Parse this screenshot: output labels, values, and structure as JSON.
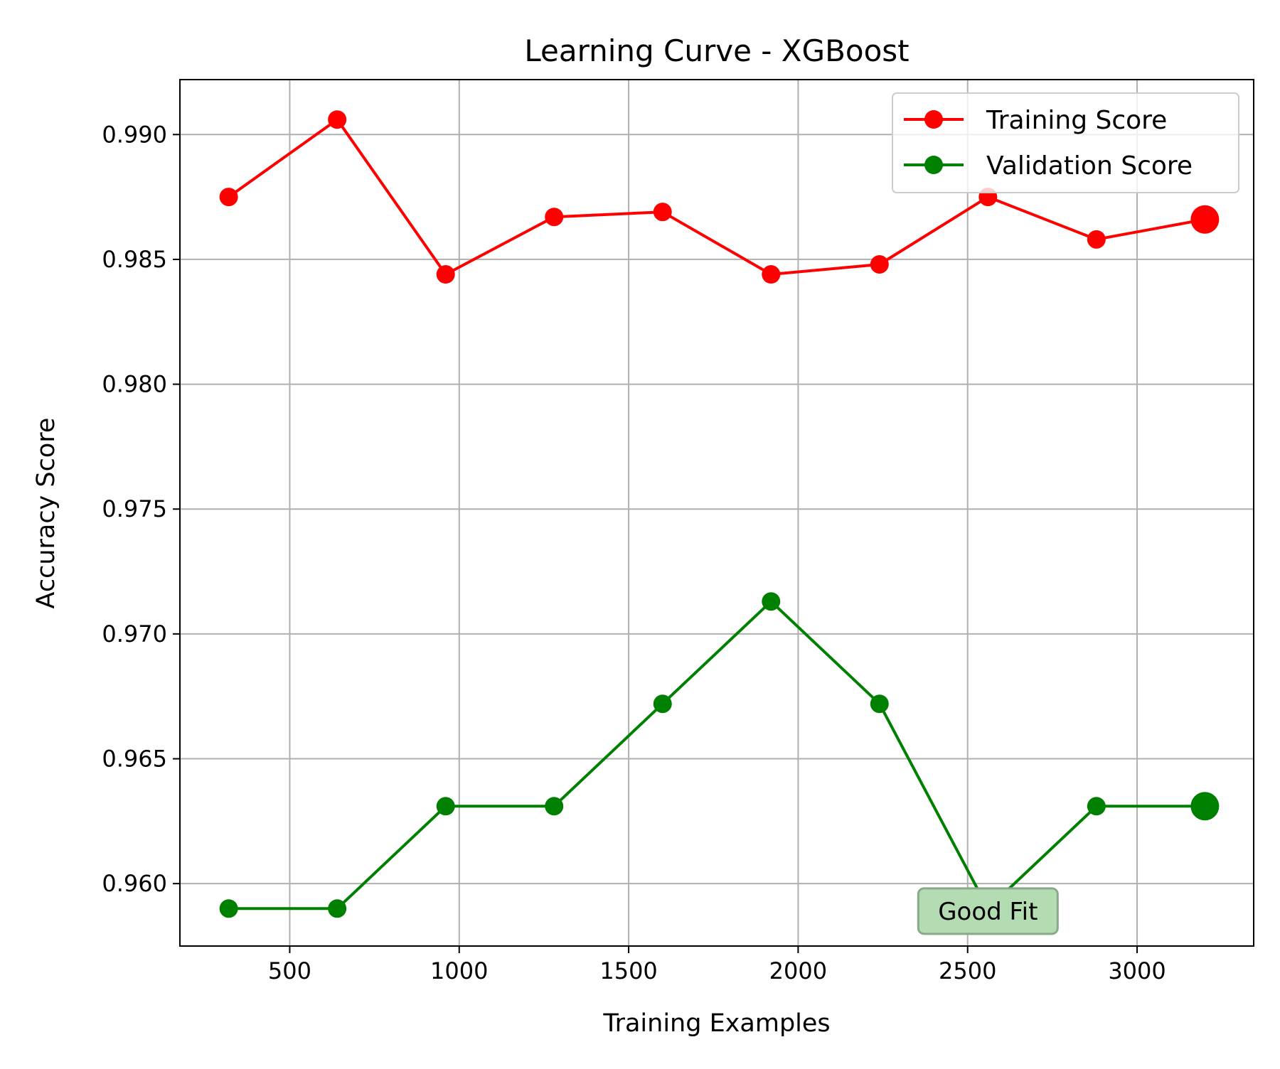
{
  "chart_data": {
    "type": "line",
    "title": "Learning Curve - XGBoost",
    "xlabel": "Training Examples",
    "ylabel": "Accuracy Score",
    "x": [
      320,
      640,
      960,
      1280,
      1600,
      1920,
      2240,
      2560,
      2880,
      3200
    ],
    "xlim": [
      176,
      3344
    ],
    "ylim": [
      0.9575,
      0.9922
    ],
    "xticks": [
      500,
      1000,
      1500,
      2000,
      2500,
      3000
    ],
    "xtick_labels": [
      "500",
      "1000",
      "1500",
      "2000",
      "2500",
      "3000"
    ],
    "yticks": [
      0.96,
      0.965,
      0.97,
      0.975,
      0.98,
      0.985,
      0.99
    ],
    "ytick_labels": [
      "0.960",
      "0.965",
      "0.970",
      "0.975",
      "0.980",
      "0.985",
      "0.990"
    ],
    "grid": true,
    "legend_position": "top-right",
    "series": [
      {
        "name": "Training Score",
        "color": "#ff0000",
        "values": [
          0.9875,
          0.9906,
          0.9844,
          0.9867,
          0.9869,
          0.9844,
          0.9848,
          0.9875,
          0.9858,
          0.9866
        ],
        "highlight_last": true
      },
      {
        "name": "Validation Score",
        "color": "#008000",
        "values": [
          0.959,
          0.959,
          0.9631,
          0.9631,
          0.9672,
          0.9713,
          0.9672,
          0.959,
          0.9631,
          0.9631
        ],
        "highlight_last": true
      }
    ],
    "annotation": {
      "text": "Good Fit",
      "x": 2560,
      "y": 0.9589,
      "box_color": "#b3dcb3",
      "edge_color": "#8aa88a"
    }
  }
}
